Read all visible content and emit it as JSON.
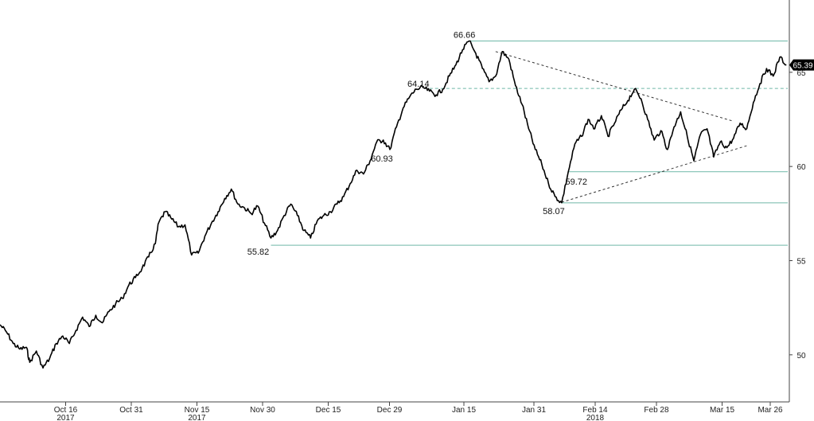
{
  "chart_data": {
    "type": "line",
    "title": "",
    "xlabel": "",
    "ylabel": "",
    "ylim": [
      47.5,
      68.5
    ],
    "y_ticks": [
      50,
      55,
      60,
      65
    ],
    "x_ticks": [
      {
        "label": "Oct 16",
        "year": "2017"
      },
      {
        "label": "Oct 31",
        "year": ""
      },
      {
        "label": "Nov 15",
        "year": "2017"
      },
      {
        "label": "Nov 30",
        "year": ""
      },
      {
        "label": "Dec 15",
        "year": ""
      },
      {
        "label": "Dec 29",
        "year": ""
      },
      {
        "label": "Jan 15",
        "year": ""
      },
      {
        "label": "Jan 31",
        "year": ""
      },
      {
        "label": "Feb 14",
        "year": "2018"
      },
      {
        "label": "Feb 28",
        "year": ""
      },
      {
        "label": "Mar 15",
        "year": ""
      },
      {
        "label": "Mar 26",
        "year": ""
      }
    ],
    "x_tick_days": [
      15,
      30,
      45,
      60,
      75,
      89,
      106,
      122,
      136,
      150,
      165,
      176
    ],
    "x_range_days": [
      0,
      180
    ],
    "grid": false,
    "last_value": "65.39",
    "series": [
      {
        "values_at_day": [
          [
            0,
            51.6
          ],
          [
            2,
            51.2
          ],
          [
            4,
            50.6
          ],
          [
            6,
            50.3
          ],
          [
            8,
            50.4
          ],
          [
            9,
            49.6
          ],
          [
            11,
            50.2
          ],
          [
            13,
            49.3
          ],
          [
            15,
            49.8
          ],
          [
            17,
            50.6
          ],
          [
            19,
            51.0
          ],
          [
            21,
            50.6
          ],
          [
            23,
            51.3
          ],
          [
            25,
            52.0
          ],
          [
            27,
            51.5
          ],
          [
            29,
            52.1
          ],
          [
            31,
            51.7
          ],
          [
            33,
            52.3
          ],
          [
            35,
            52.7
          ],
          [
            37,
            53.0
          ],
          [
            39,
            53.7
          ],
          [
            41,
            54.1
          ],
          [
            43,
            54.6
          ],
          [
            45,
            55.2
          ],
          [
            47,
            55.9
          ],
          [
            48,
            57.0
          ],
          [
            50,
            57.6
          ],
          [
            52,
            57.2
          ],
          [
            54,
            56.8
          ],
          [
            56,
            56.9
          ],
          [
            58,
            55.3
          ],
          [
            60,
            55.4
          ],
          [
            62,
            56.3
          ],
          [
            64,
            57.0
          ],
          [
            66,
            57.6
          ],
          [
            68,
            58.3
          ],
          [
            70,
            58.8
          ],
          [
            72,
            58.0
          ],
          [
            74,
            57.8
          ],
          [
            76,
            57.5
          ],
          [
            78,
            57.9
          ],
          [
            80,
            57.0
          ],
          [
            82,
            56.2
          ],
          [
            84,
            56.6
          ],
          [
            86,
            57.4
          ],
          [
            88,
            58.0
          ],
          [
            90,
            57.4
          ],
          [
            92,
            56.6
          ],
          [
            94,
            56.2
          ],
          [
            96,
            57.1
          ],
          [
            98,
            57.4
          ],
          [
            100,
            57.6
          ],
          [
            102,
            58.0
          ],
          [
            104,
            58.4
          ],
          [
            106,
            59.1
          ],
          [
            108,
            59.8
          ],
          [
            110,
            59.6
          ],
          [
            112,
            60.3
          ],
          [
            114,
            61.3
          ],
          [
            116,
            61.4
          ],
          [
            118,
            60.9
          ],
          [
            120,
            62.1
          ],
          [
            122,
            63.1
          ],
          [
            124,
            63.7
          ],
          [
            126,
            64.1
          ],
          [
            128,
            64.2
          ],
          [
            130,
            64.0
          ],
          [
            132,
            63.8
          ],
          [
            134,
            64.1
          ],
          [
            136,
            64.8
          ],
          [
            138,
            65.4
          ],
          [
            140,
            66.2
          ],
          [
            142,
            66.66
          ],
          [
            144,
            66.0
          ],
          [
            146,
            65.2
          ],
          [
            148,
            64.5
          ],
          [
            150,
            64.8
          ],
          [
            152,
            66.1
          ],
          [
            154,
            65.7
          ],
          [
            156,
            64.3
          ],
          [
            158,
            63.3
          ],
          [
            160,
            62.0
          ],
          [
            162,
            60.9
          ],
          [
            164,
            60.1
          ],
          [
            166,
            59.1
          ],
          [
            168,
            58.4
          ],
          [
            170,
            58.07
          ],
          [
            172,
            59.72
          ],
          [
            174,
            61.2
          ],
          [
            176,
            61.6
          ],
          [
            178,
            62.5
          ],
          [
            180,
            62.0
          ],
          [
            182,
            62.7
          ],
          [
            184,
            61.6
          ],
          [
            186,
            62.3
          ],
          [
            188,
            63.0
          ],
          [
            190,
            63.5
          ],
          [
            192,
            64.1
          ],
          [
            194,
            63.6
          ],
          [
            196,
            62.5
          ],
          [
            198,
            61.4
          ],
          [
            200,
            61.9
          ],
          [
            202,
            60.9
          ],
          [
            204,
            62.1
          ],
          [
            206,
            62.9
          ],
          [
            208,
            61.6
          ],
          [
            210,
            60.3
          ],
          [
            212,
            61.7
          ],
          [
            214,
            62.0
          ],
          [
            216,
            60.5
          ],
          [
            218,
            61.3
          ],
          [
            220,
            61.0
          ],
          [
            222,
            61.5
          ],
          [
            224,
            62.3
          ],
          [
            226,
            62.0
          ],
          [
            228,
            63.4
          ],
          [
            230,
            64.4
          ],
          [
            232,
            65.2
          ],
          [
            234,
            64.8
          ],
          [
            236,
            65.8
          ],
          [
            238,
            65.4
          ]
        ],
        "values_day_scale": 0.755
      }
    ],
    "annotations": [
      {
        "label": "66.66",
        "value": 66.66,
        "day": 142
      },
      {
        "label": "64.14",
        "value": 64.14,
        "day": 130
      },
      {
        "label": "60.93",
        "value": 60.93,
        "day": 118
      },
      {
        "label": "59.72",
        "value": 59.72,
        "day": 172
      },
      {
        "label": "58.07",
        "value": 58.07,
        "day": 170
      },
      {
        "label": "55.82",
        "value": 55.82,
        "day": 82
      }
    ],
    "horizontal_levels": [
      {
        "value": 66.66,
        "style": "solid",
        "from_day": 142
      },
      {
        "value": 64.14,
        "style": "dashed",
        "from_day": 130
      },
      {
        "value": 59.72,
        "style": "solid",
        "from_day": 172
      },
      {
        "value": 58.07,
        "style": "solid",
        "from_day": 170
      },
      {
        "value": 55.82,
        "style": "solid",
        "from_day": 82
      }
    ],
    "trendlines": [
      {
        "from": [
          150,
          66.1
        ],
        "to": [
          222,
          62.4
        ],
        "style": "dashed"
      },
      {
        "from": [
          170,
          58.1
        ],
        "to": [
          226,
          61.1
        ],
        "style": "dashed"
      }
    ],
    "colors": {
      "price": "#000000",
      "levels": "#6fb8a8",
      "trend": "#333333",
      "axis": "#444444",
      "last_tag_bg": "#000000",
      "last_tag_fg": "#ffffff"
    }
  }
}
